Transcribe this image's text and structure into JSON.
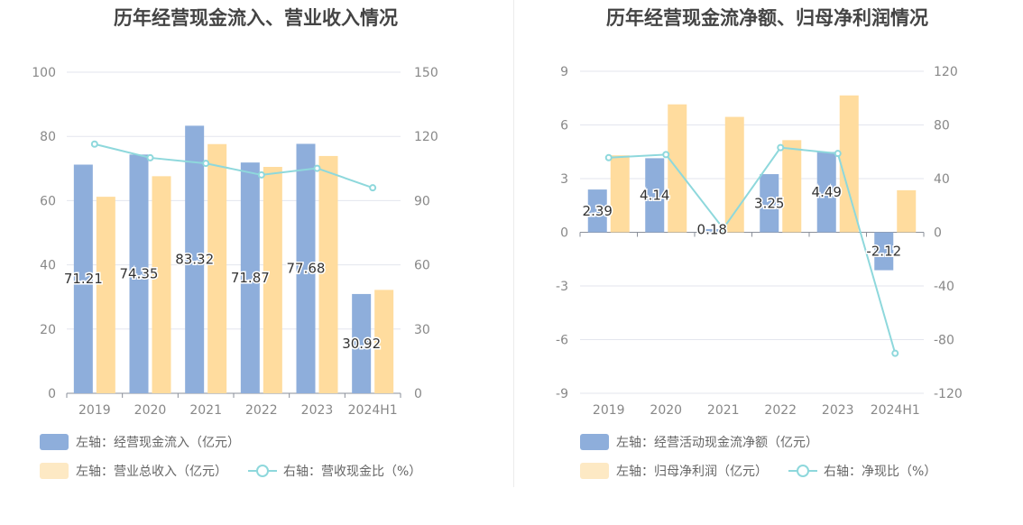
{
  "charts": [
    {
      "title": "历年经营现金流入、营业收入情况",
      "legend": [
        {
          "label": "左轴：经营现金流入（亿元）",
          "color": "#8eaedb",
          "kind": "bar"
        },
        {
          "label": "左轴：营业总收入（亿元）",
          "color": "#fde9c4",
          "kind": "bar"
        },
        {
          "label": "右轴：营收现金比（%）",
          "color": "#8ed8dc",
          "kind": "line"
        }
      ]
    },
    {
      "title": "历年经营现金流净额、归母净利润情况",
      "legend": [
        {
          "label": "左轴：经营活动现金流净额（亿元）",
          "color": "#8eaedb",
          "kind": "bar"
        },
        {
          "label": "左轴：归母净利润（亿元）",
          "color": "#fde9c4",
          "kind": "bar"
        },
        {
          "label": "右轴：净现比（%）",
          "color": "#8ed8dc",
          "kind": "line"
        }
      ]
    }
  ],
  "chart_data": [
    {
      "type": "bar",
      "title": "历年经营现金流入、营业收入情况",
      "categories": [
        "2019",
        "2020",
        "2021",
        "2022",
        "2023",
        "2024H1"
      ],
      "ylim_left": [
        0,
        100
      ],
      "yticks_left": [
        0,
        20,
        40,
        60,
        80,
        100
      ],
      "ylim_right": [
        0,
        150
      ],
      "yticks_right": [
        0,
        30,
        60,
        90,
        120,
        150
      ],
      "grid": true,
      "legend_position": "bottom",
      "series": [
        {
          "name": "左轴：经营现金流入（亿元）",
          "axis": "left",
          "type": "bar",
          "color": "#8eaedb",
          "values": [
            71.21,
            74.35,
            83.32,
            71.87,
            77.68,
            30.92
          ],
          "labels": [
            "71.21",
            "74.35",
            "83.32",
            "71.87",
            "77.68",
            "30.92"
          ]
        },
        {
          "name": "左轴：营业总收入（亿元）",
          "axis": "left",
          "type": "bar",
          "color": "#ffdc9e",
          "values": [
            61.2,
            67.6,
            77.6,
            70.5,
            73.9,
            32.2
          ]
        },
        {
          "name": "右轴：营收现金比（%）",
          "axis": "right",
          "type": "line",
          "color": "#8ed8dc",
          "values": [
            116.4,
            110.0,
            107.4,
            102.0,
            105.1,
            96.0
          ]
        }
      ]
    },
    {
      "type": "bar",
      "title": "历年经营现金流净额、归母净利润情况",
      "categories": [
        "2019",
        "2020",
        "2021",
        "2022",
        "2023",
        "2024H1"
      ],
      "ylim_left": [
        -9,
        9
      ],
      "yticks_left": [
        -9,
        -6,
        -3,
        0,
        3,
        6,
        9
      ],
      "ylim_right": [
        -120,
        120
      ],
      "yticks_right": [
        -120,
        -80,
        -40,
        0,
        40,
        80,
        120
      ],
      "grid": true,
      "legend_position": "bottom",
      "series": [
        {
          "name": "左轴：经营活动现金流净额（亿元）",
          "axis": "left",
          "type": "bar",
          "color": "#8eaedb",
          "values": [
            2.39,
            4.14,
            0.18,
            3.25,
            4.49,
            -2.12
          ],
          "labels": [
            "2.39",
            "4.14",
            "0.18",
            "3.25",
            "4.49",
            "-2.12"
          ]
        },
        {
          "name": "左轴：归母净利润（亿元）",
          "axis": "left",
          "type": "bar",
          "color": "#ffdc9e",
          "values": [
            4.3,
            7.15,
            6.45,
            5.15,
            7.65,
            2.35
          ]
        },
        {
          "name": "右轴：净现比（%）",
          "axis": "right",
          "type": "line",
          "color": "#8ed8dc",
          "values": [
            55.6,
            57.9,
            2.8,
            63.1,
            58.7,
            -90.2
          ]
        }
      ]
    }
  ]
}
